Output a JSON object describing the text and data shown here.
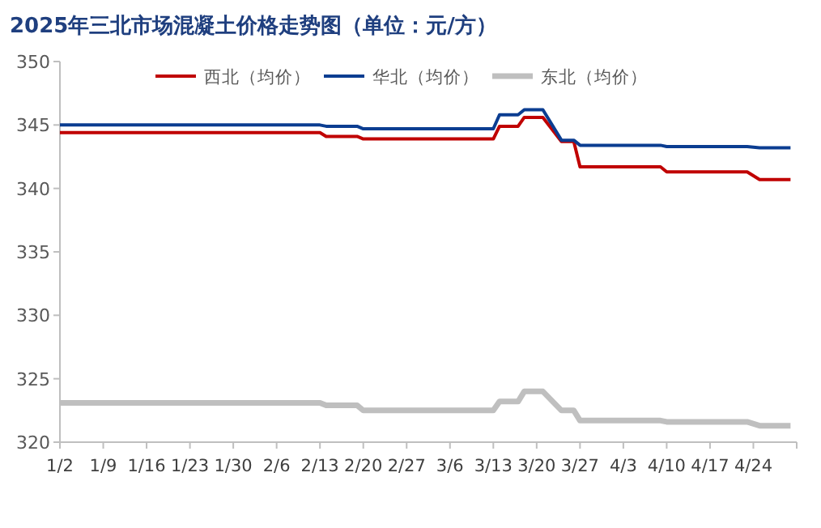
{
  "chart_data": {
    "type": "line",
    "title": "2025年三北市场混凝土价格走势图（单位：元/方）",
    "x": [
      "--01-02",
      "--02-13",
      "--02-14",
      "--02-19",
      "--02-20",
      "--03-13",
      "--03-14",
      "--03-17",
      "--03-18",
      "--03-21",
      "--03-24",
      "--03-26",
      "--03-27",
      "--04-09",
      "--04-10",
      "--04-23",
      "--04-25",
      "--04-30"
    ],
    "series": [
      {
        "name": "西北（均价）",
        "color": "#c00000",
        "values": [
          344.4,
          344.4,
          344.1,
          344.1,
          343.9,
          343.9,
          344.9,
          344.9,
          345.6,
          345.6,
          343.7,
          343.7,
          341.7,
          341.7,
          341.3,
          341.3,
          340.7,
          340.7
        ]
      },
      {
        "name": "华北（均价）",
        "color": "#0b3d91",
        "values": [
          345,
          345,
          344.9,
          344.9,
          344.7,
          344.7,
          345.8,
          345.8,
          346.2,
          346.2,
          343.8,
          343.8,
          343.4,
          343.4,
          343.3,
          343.3,
          343.2,
          343.2
        ]
      },
      {
        "name": "东北（均价）",
        "color": "#bfbfbf",
        "values": [
          323.1,
          323.1,
          322.9,
          322.9,
          322.5,
          322.5,
          323.2,
          323.2,
          324,
          324,
          322.5,
          322.5,
          321.7,
          321.7,
          321.6,
          321.6,
          321.3,
          321.3
        ]
      }
    ],
    "xlim": [
      "--01-02",
      "--05-01"
    ],
    "xticks": [
      {
        "value": "--01-02",
        "label": "1/2"
      },
      {
        "value": "--01-09",
        "label": "1/9"
      },
      {
        "value": "--01-16",
        "label": "1/16"
      },
      {
        "value": "--01-23",
        "label": "1/23"
      },
      {
        "value": "--01-30",
        "label": "1/30"
      },
      {
        "value": "--02-06",
        "label": "2/6"
      },
      {
        "value": "--02-13",
        "label": "2/13"
      },
      {
        "value": "--02-20",
        "label": "2/20"
      },
      {
        "value": "--02-27",
        "label": "2/27"
      },
      {
        "value": "--03-06",
        "label": "3/6"
      },
      {
        "value": "--03-13",
        "label": "3/13"
      },
      {
        "value": "--03-20",
        "label": "3/20"
      },
      {
        "value": "--03-27",
        "label": "3/27"
      },
      {
        "value": "--04-03",
        "label": "4/3"
      },
      {
        "value": "--04-10",
        "label": "4/10"
      },
      {
        "value": "--04-17",
        "label": "4/17"
      },
      {
        "value": "--04-24",
        "label": "4/24"
      },
      {
        "value": "--05-01",
        "label": null
      }
    ],
    "ylim": [
      320,
      350
    ],
    "yticks": [
      320,
      325,
      330,
      335,
      340,
      345,
      350
    ],
    "legend": "top right",
    "grid": false,
    "marker": "none",
    "line_style": "solid"
  }
}
